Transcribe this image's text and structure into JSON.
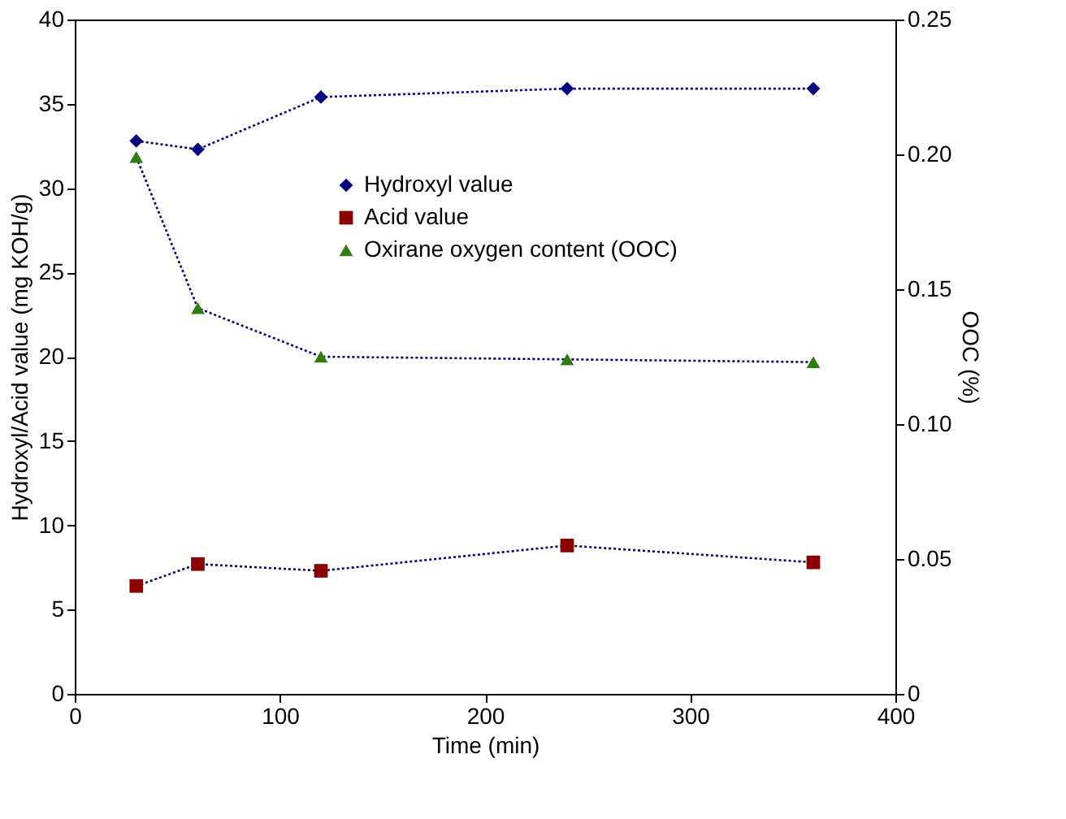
{
  "chart_data": {
    "type": "line",
    "xlabel": "Time (min)",
    "ylabel": "Hydroxyl/Acid value (mg KOH/g)",
    "y2label": "OOC (%)",
    "x": [
      30,
      60,
      120,
      240,
      360
    ],
    "series": [
      {
        "name": "Hydroxyl value",
        "color": "#000080",
        "marker": "diamond",
        "values": [
          32.8,
          32.3,
          35.4,
          35.9,
          35.9
        ]
      },
      {
        "name": "Acid value",
        "color": "#8b0000",
        "marker": "square",
        "values": [
          6.4,
          7.7,
          7.3,
          8.8,
          7.8
        ]
      },
      {
        "name": "Oxirane oxygen content (OOC)",
        "color": "#2e7d12",
        "marker": "triangle",
        "axis": "y2",
        "values": [
          0.199,
          0.143,
          0.125,
          0.124,
          0.123
        ]
      }
    ],
    "xlim": [
      0,
      400
    ],
    "xticks": [
      0,
      100,
      200,
      300,
      400
    ],
    "ylim": [
      0,
      40
    ],
    "yticks": [
      0,
      5,
      10,
      15,
      20,
      25,
      30,
      35,
      40
    ],
    "y2lim": [
      0,
      0.25
    ],
    "y2ticks": [
      0,
      0.05,
      {
        "value": 0.1,
        "label": "0.10"
      },
      0.15,
      {
        "value": 0.2,
        "label": "0.20"
      },
      0.25
    ],
    "grid": false,
    "legend": "top right",
    "line_style": "dotted"
  }
}
